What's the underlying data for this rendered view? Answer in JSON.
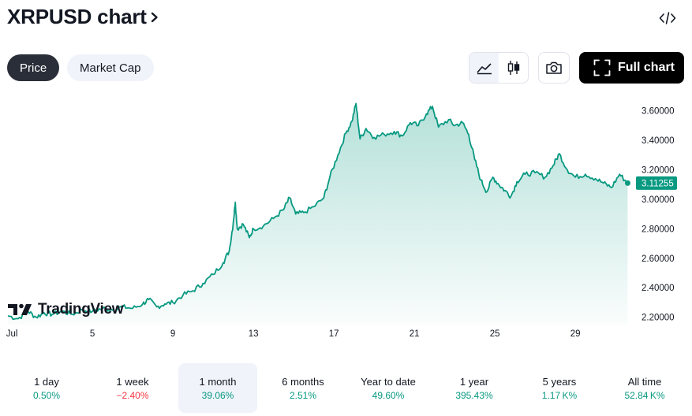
{
  "header": {
    "title": "XRPUSD chart"
  },
  "toggles": {
    "price_label": "Price",
    "market_cap_label": "Market Cap"
  },
  "toolbar": {
    "full_chart_label": "Full chart"
  },
  "logo": {
    "text": "TradingView"
  },
  "colors": {
    "accent": "#089981",
    "negative": "#f23645",
    "text": "#131722"
  },
  "periods": [
    {
      "label": "1 day",
      "change": "0.50%",
      "dir": "up"
    },
    {
      "label": "1 week",
      "change": "−2.40%",
      "dir": "down"
    },
    {
      "label": "1 month",
      "change": "39.06%",
      "dir": "up",
      "active": true
    },
    {
      "label": "6 months",
      "change": "2.51%",
      "dir": "up"
    },
    {
      "label": "Year to date",
      "change": "49.60%",
      "dir": "up"
    },
    {
      "label": "1 year",
      "change": "395.43%",
      "dir": "up"
    },
    {
      "label": "5 years",
      "change": "1.17 K%",
      "dir": "up"
    },
    {
      "label": "All time",
      "change": "52.84 K%",
      "dir": "up"
    }
  ],
  "chart_data": {
    "type": "area",
    "symbol": "XRPUSD",
    "x_unit": "day of July",
    "x_ticks": [
      {
        "label": "Jul",
        "day": 1
      },
      {
        "label": "5",
        "day": 5
      },
      {
        "label": "9",
        "day": 9
      },
      {
        "label": "13",
        "day": 13
      },
      {
        "label": "17",
        "day": 17
      },
      {
        "label": "21",
        "day": 21
      },
      {
        "label": "25",
        "day": 25
      },
      {
        "label": "29",
        "day": 29
      }
    ],
    "y_ticks": [
      "2.20000",
      "2.40000",
      "2.60000",
      "2.80000",
      "3.00000",
      "3.20000",
      "3.40000",
      "3.60000"
    ],
    "ylim": [
      2.15,
      3.7
    ],
    "xlim": [
      0.8,
      31.7
    ],
    "last_value": "3.11255",
    "points": [
      [
        0.8,
        2.21
      ],
      [
        1.3,
        2.19
      ],
      [
        1.8,
        2.24
      ],
      [
        2.2,
        2.2
      ],
      [
        2.6,
        2.23
      ],
      [
        3.0,
        2.22
      ],
      [
        3.5,
        2.24
      ],
      [
        4.0,
        2.22
      ],
      [
        4.5,
        2.25
      ],
      [
        5.0,
        2.24
      ],
      [
        5.5,
        2.26
      ],
      [
        6.0,
        2.25
      ],
      [
        6.5,
        2.27
      ],
      [
        7.0,
        2.26
      ],
      [
        7.5,
        2.29
      ],
      [
        7.8,
        2.32
      ],
      [
        8.2,
        2.27
      ],
      [
        8.6,
        2.29
      ],
      [
        9.0,
        2.3
      ],
      [
        9.5,
        2.35
      ],
      [
        10.0,
        2.38
      ],
      [
        10.5,
        2.43
      ],
      [
        11.0,
        2.49
      ],
      [
        11.5,
        2.57
      ],
      [
        11.8,
        2.65
      ],
      [
        12.0,
        2.84
      ],
      [
        12.1,
        2.98
      ],
      [
        12.2,
        2.8
      ],
      [
        12.5,
        2.83
      ],
      [
        12.8,
        2.74
      ],
      [
        13.0,
        2.8
      ],
      [
        13.5,
        2.82
      ],
      [
        14.0,
        2.87
      ],
      [
        14.5,
        2.93
      ],
      [
        14.8,
        3.01
      ],
      [
        15.1,
        2.9
      ],
      [
        15.5,
        2.91
      ],
      [
        16.0,
        2.95
      ],
      [
        16.5,
        3.01
      ],
      [
        16.8,
        3.15
      ],
      [
        17.2,
        3.3
      ],
      [
        17.6,
        3.45
      ],
      [
        17.9,
        3.53
      ],
      [
        18.1,
        3.65
      ],
      [
        18.3,
        3.41
      ],
      [
        18.6,
        3.48
      ],
      [
        19.0,
        3.42
      ],
      [
        19.5,
        3.44
      ],
      [
        20.0,
        3.46
      ],
      [
        20.4,
        3.43
      ],
      [
        20.8,
        3.52
      ],
      [
        21.2,
        3.5
      ],
      [
        21.6,
        3.58
      ],
      [
        21.9,
        3.63
      ],
      [
        22.2,
        3.49
      ],
      [
        22.7,
        3.54
      ],
      [
        23.0,
        3.5
      ],
      [
        23.4,
        3.52
      ],
      [
        23.7,
        3.44
      ],
      [
        24.0,
        3.27
      ],
      [
        24.3,
        3.13
      ],
      [
        24.6,
        3.05
      ],
      [
        24.9,
        3.15
      ],
      [
        25.2,
        3.1
      ],
      [
        25.5,
        3.06
      ],
      [
        25.8,
        3.02
      ],
      [
        26.1,
        3.12
      ],
      [
        26.5,
        3.17
      ],
      [
        27.0,
        3.18
      ],
      [
        27.5,
        3.15
      ],
      [
        27.9,
        3.23
      ],
      [
        28.2,
        3.31
      ],
      [
        28.6,
        3.2
      ],
      [
        29.0,
        3.15
      ],
      [
        29.5,
        3.17
      ],
      [
        30.0,
        3.14
      ],
      [
        30.4,
        3.11
      ],
      [
        30.8,
        3.08
      ],
      [
        31.2,
        3.17
      ],
      [
        31.6,
        3.11
      ]
    ]
  }
}
